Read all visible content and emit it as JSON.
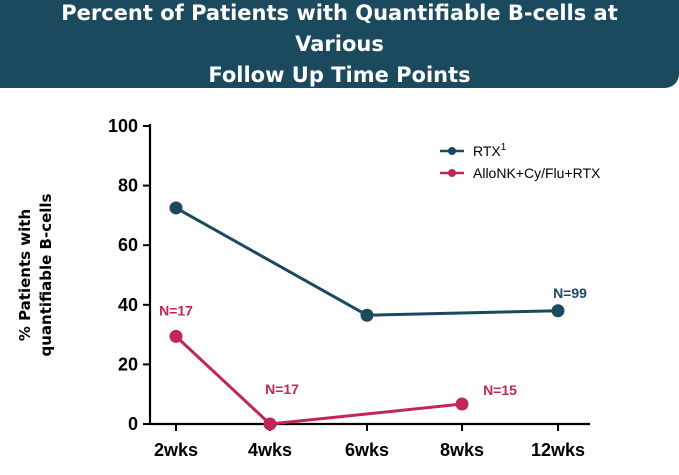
{
  "header": {
    "title_line1": "Percent of Patients with Quantifiable B-cells at Various",
    "title_line2": "Follow Up Time Points"
  },
  "chart_data": {
    "type": "line",
    "title": "Percent of Patients with Quantifiable B-cells at Various Follow Up Time Points",
    "xlabel": "",
    "ylabel_line1": "% Patients with",
    "ylabel_line2": "quantifiable B-cells",
    "ylim": [
      0,
      100
    ],
    "yticks": [
      "0",
      "20",
      "40",
      "60",
      "80",
      "100"
    ],
    "categories": [
      "2wks",
      "4wks",
      "6wks",
      "8wks",
      "12wks"
    ],
    "series": [
      {
        "name": "RTX",
        "superscript": "1",
        "color": "#1b4a5e",
        "points": [
          {
            "x": "2wks",
            "y": 72.5
          },
          {
            "x": "6wks",
            "y": 36.5
          },
          {
            "x": "12wks",
            "y": 38
          }
        ],
        "annotations": [
          {
            "x": "12wks",
            "y": 38,
            "text": "N=99"
          }
        ]
      },
      {
        "name": "AlloNK+Cy/Flu+RTX",
        "superscript": "",
        "color": "#c2255c",
        "points": [
          {
            "x": "2wks",
            "y": 29.4
          },
          {
            "x": "4wks",
            "y": 0
          },
          {
            "x": "8wks",
            "y": 6.7
          }
        ],
        "annotations": [
          {
            "x": "2wks",
            "y": 29.4,
            "text": "N=17"
          },
          {
            "x": "4wks",
            "y": 0,
            "text": "N=17"
          },
          {
            "x": "8wks",
            "y": 6.7,
            "text": "N=15"
          }
        ]
      }
    ],
    "legend_position": "top-right"
  }
}
